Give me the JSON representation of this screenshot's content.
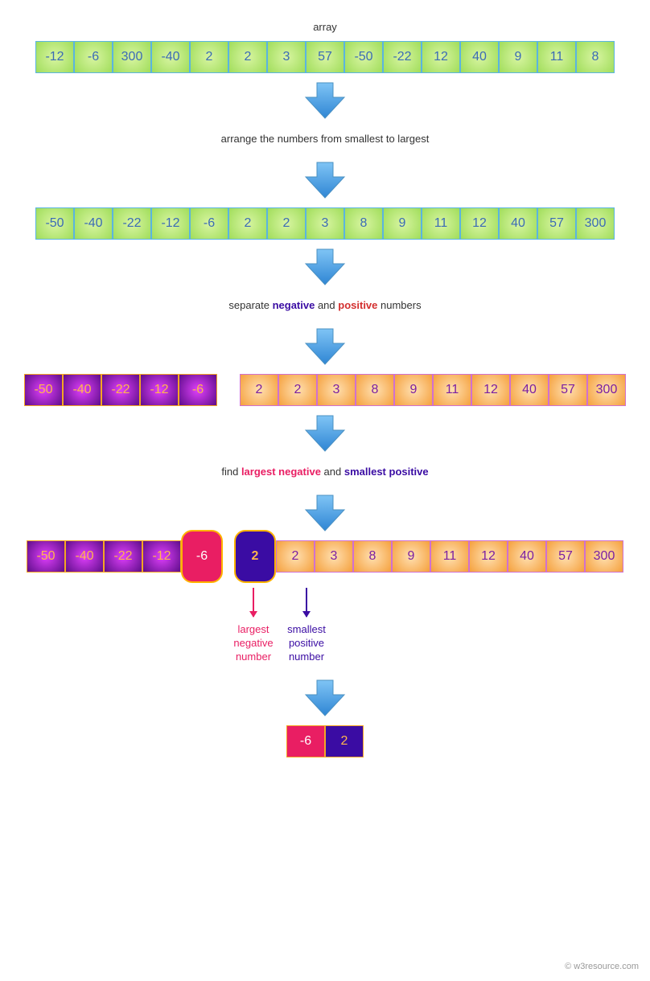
{
  "labels": {
    "array": "array",
    "sort": "arrange the numbers from smallest  to largest",
    "separate_pre": "separate ",
    "separate_neg": "negative",
    "separate_mid": " and ",
    "separate_pos": "positive",
    "separate_post": " numbers",
    "find_pre": "find ",
    "find_neg": "largest negative",
    "find_mid": " and ",
    "find_pos": "smallest positive",
    "largest_neg_l1": "largest",
    "largest_neg_l2": "negative",
    "largest_neg_l3": "number",
    "smallest_pos_l1": "smallest",
    "smallest_pos_l2": "positive",
    "smallest_pos_l3": "number",
    "copyright": "© w3resource.com"
  },
  "arrays": {
    "original": [
      "-12",
      "-6",
      "300",
      "-40",
      "2",
      "2",
      "3",
      "57",
      "-50",
      "-22",
      "12",
      "40",
      "9",
      "11",
      "8"
    ],
    "sorted": [
      "-50",
      "-40",
      "-22",
      "-12",
      "-6",
      "2",
      "2",
      "3",
      "8",
      "9",
      "11",
      "12",
      "40",
      "57",
      "300"
    ],
    "neg": [
      "-50",
      "-40",
      "-22",
      "-12",
      "-6"
    ],
    "pos": [
      "2",
      "2",
      "3",
      "8",
      "9",
      "11",
      "12",
      "40",
      "57",
      "300"
    ],
    "result_neg": "-6",
    "result_pos": "2"
  },
  "colors": {
    "green_center": "#d8f5a2",
    "green_edge": "#a0dd5a",
    "green_border": "#5ab4e0",
    "green_text": "#3b6bb5",
    "purple_center": "#e040fb",
    "purple_edge": "#5e0d8a",
    "purple_border": "#f5a623",
    "purple_text": "#ffb74d",
    "orange_center": "#ffe0b2",
    "orange_edge": "#f5a03c",
    "orange_border": "#d070d0",
    "orange_text": "#7b1fa2",
    "pink": "#e91e63",
    "indigo": "#3a0ca3",
    "arrow_top": "#7fc4f5",
    "arrow_bottom": "#2f86d4"
  },
  "arrow": {
    "width": 56,
    "height": 48
  }
}
